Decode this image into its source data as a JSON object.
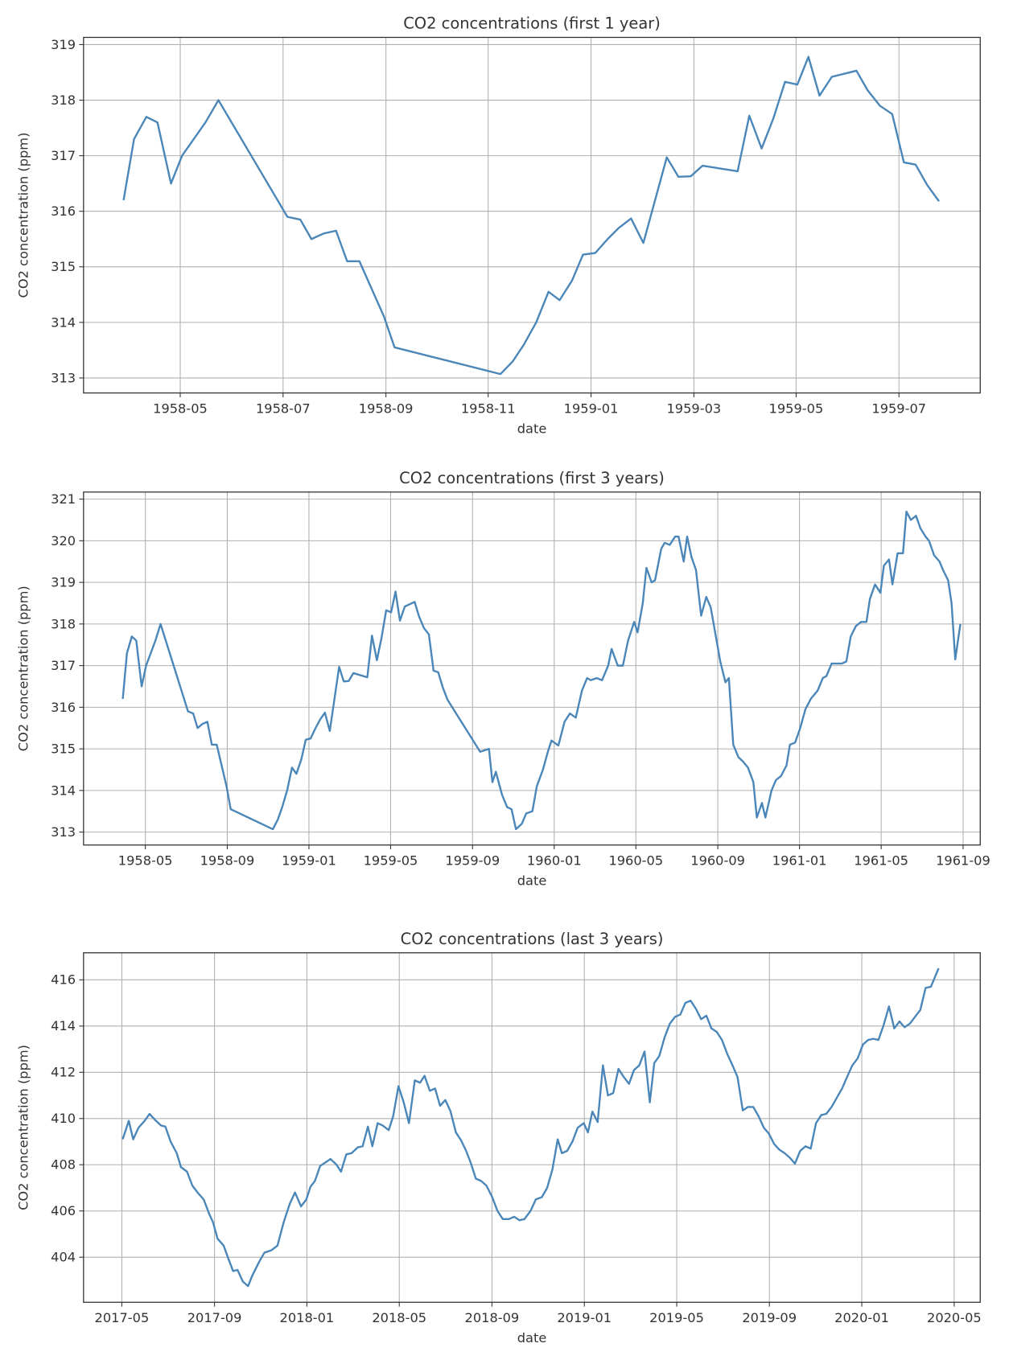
{
  "chart_data": [
    {
      "type": "line",
      "title": "CO2 concentrations (first 1 year)",
      "x_label": "date",
      "y_label": "CO2 concentration (ppm)",
      "color": "#4a86b8",
      "grid": true,
      "xlim": [
        1958.176,
        1959.632
      ],
      "ylim": [
        312.73,
        319.13
      ],
      "xticks": [
        {
          "value": 1958.333,
          "label": "1958-05"
        },
        {
          "value": 1958.5,
          "label": "1958-07"
        },
        {
          "value": 1958.667,
          "label": "1958-09"
        },
        {
          "value": 1958.833,
          "label": "1958-11"
        },
        {
          "value": 1959.0,
          "label": "1959-01"
        },
        {
          "value": 1959.167,
          "label": "1959-03"
        },
        {
          "value": 1959.333,
          "label": "1959-05"
        },
        {
          "value": 1959.5,
          "label": "1959-07"
        }
      ],
      "yticks": [
        313,
        314,
        315,
        316,
        317,
        318,
        319
      ],
      "x": [
        1958.241,
        1958.258,
        1958.278,
        1958.296,
        1958.318,
        1958.336,
        1958.374,
        1958.395,
        1958.507,
        1958.528,
        1958.546,
        1958.566,
        1958.586,
        1958.604,
        1958.624,
        1958.664,
        1958.681,
        1958.853,
        1958.873,
        1958.891,
        1958.911,
        1958.931,
        1958.949,
        1958.969,
        1958.987,
        1959.007,
        1959.027,
        1959.045,
        1959.065,
        1959.085,
        1959.123,
        1959.142,
        1959.162,
        1959.181,
        1959.238,
        1959.257,
        1959.277,
        1959.296,
        1959.315,
        1959.335,
        1959.353,
        1959.371,
        1959.391,
        1959.431,
        1959.449,
        1959.469,
        1959.489,
        1959.508,
        1959.527,
        1959.546,
        1959.565
      ],
      "values": [
        316.2,
        317.3,
        317.7,
        317.6,
        316.5,
        317.0,
        317.6,
        318.0,
        315.9,
        315.85,
        315.5,
        315.6,
        315.65,
        315.1,
        315.1,
        314.1,
        313.55,
        313.07,
        313.3,
        313.6,
        314.0,
        314.55,
        314.4,
        314.75,
        315.22,
        315.25,
        315.5,
        315.7,
        315.87,
        315.43,
        316.97,
        316.62,
        316.63,
        316.82,
        316.72,
        317.72,
        317.13,
        317.67,
        318.33,
        318.28,
        318.78,
        318.08,
        318.42,
        318.53,
        318.18,
        317.9,
        317.75,
        316.88,
        316.84,
        316.47,
        316.18
      ]
    },
    {
      "type": "line",
      "title": "CO2 concentrations (first 3 years)",
      "x_label": "date",
      "y_label": "CO2 concentration (ppm)",
      "color": "#4a86b8",
      "grid": true,
      "xlim": [
        1958.081,
        1961.737
      ],
      "ylim": [
        312.69,
        321.17
      ],
      "xticks": [
        {
          "value": 1958.333,
          "label": "1958-05"
        },
        {
          "value": 1958.667,
          "label": "1958-09"
        },
        {
          "value": 1959.0,
          "label": "1959-01"
        },
        {
          "value": 1959.333,
          "label": "1959-05"
        },
        {
          "value": 1959.667,
          "label": "1959-09"
        },
        {
          "value": 1960.0,
          "label": "1960-01"
        },
        {
          "value": 1960.333,
          "label": "1960-05"
        },
        {
          "value": 1960.667,
          "label": "1960-09"
        },
        {
          "value": 1961.0,
          "label": "1961-01"
        },
        {
          "value": 1961.333,
          "label": "1961-05"
        },
        {
          "value": 1961.667,
          "label": "1961-09"
        }
      ],
      "yticks": [
        313,
        314,
        315,
        316,
        317,
        318,
        319,
        320,
        321
      ],
      "x": [
        1958.241,
        1958.258,
        1958.278,
        1958.296,
        1958.318,
        1958.336,
        1958.374,
        1958.395,
        1958.507,
        1958.528,
        1958.546,
        1958.566,
        1958.586,
        1958.604,
        1958.624,
        1958.664,
        1958.681,
        1958.853,
        1958.873,
        1958.891,
        1958.911,
        1958.931,
        1958.949,
        1958.969,
        1958.987,
        1959.007,
        1959.027,
        1959.045,
        1959.065,
        1959.085,
        1959.123,
        1959.142,
        1959.162,
        1959.181,
        1959.238,
        1959.257,
        1959.277,
        1959.296,
        1959.315,
        1959.335,
        1959.353,
        1959.371,
        1959.391,
        1959.431,
        1959.449,
        1959.469,
        1959.489,
        1959.508,
        1959.527,
        1959.546,
        1959.565,
        1959.698,
        1959.734,
        1959.748,
        1959.762,
        1959.787,
        1959.808,
        1959.826,
        1959.844,
        1959.868,
        1959.886,
        1959.911,
        1959.929,
        1959.954,
        1959.975,
        1959.989,
        1960.017,
        1960.042,
        1960.064,
        1960.088,
        1960.113,
        1960.134,
        1960.149,
        1960.173,
        1960.195,
        1960.22,
        1960.234,
        1960.259,
        1960.28,
        1960.301,
        1960.326,
        1960.34,
        1960.361,
        1960.376,
        1960.397,
        1960.411,
        1960.436,
        1960.45,
        1960.471,
        1960.493,
        1960.507,
        1960.528,
        1960.542,
        1960.56,
        1960.578,
        1960.599,
        1960.62,
        1960.638,
        1960.656,
        1960.677,
        1960.698,
        1960.712,
        1960.73,
        1960.751,
        1960.769,
        1960.79,
        1960.812,
        1960.826,
        1960.847,
        1960.861,
        1960.886,
        1960.904,
        1960.925,
        1960.947,
        1960.961,
        1960.982,
        1961.003,
        1961.024,
        1961.046,
        1961.074,
        1961.095,
        1961.11,
        1961.131,
        1961.173,
        1961.191,
        1961.209,
        1961.23,
        1961.251,
        1961.273,
        1961.287,
        1961.308,
        1961.33,
        1961.344,
        1961.365,
        1961.379,
        1961.4,
        1961.422,
        1961.436,
        1961.454,
        1961.475,
        1961.493,
        1961.514,
        1961.528,
        1961.549,
        1961.571,
        1961.585,
        1961.606,
        1961.62,
        1961.635,
        1961.656
      ],
      "values": [
        316.2,
        317.3,
        317.7,
        317.6,
        316.5,
        317.0,
        317.6,
        318.0,
        315.9,
        315.85,
        315.5,
        315.6,
        315.65,
        315.1,
        315.1,
        314.1,
        313.55,
        313.07,
        313.3,
        313.6,
        314.0,
        314.55,
        314.4,
        314.75,
        315.22,
        315.25,
        315.5,
        315.7,
        315.87,
        315.43,
        316.97,
        316.62,
        316.63,
        316.82,
        316.72,
        317.72,
        317.13,
        317.67,
        318.33,
        318.28,
        318.78,
        318.08,
        318.42,
        318.53,
        318.18,
        317.9,
        317.75,
        316.88,
        316.84,
        316.47,
        316.18,
        314.93,
        315.0,
        314.2,
        314.45,
        313.9,
        313.6,
        313.55,
        313.07,
        313.2,
        313.45,
        313.5,
        314.1,
        314.5,
        314.95,
        315.2,
        315.08,
        315.65,
        315.85,
        315.75,
        316.4,
        316.7,
        316.65,
        316.7,
        316.65,
        317.0,
        317.4,
        317.0,
        317.0,
        317.6,
        318.05,
        317.8,
        318.5,
        319.35,
        319.0,
        319.05,
        319.8,
        319.95,
        319.9,
        320.1,
        320.1,
        319.5,
        320.1,
        319.6,
        319.3,
        318.2,
        318.65,
        318.4,
        317.8,
        317.1,
        316.6,
        316.7,
        315.1,
        314.8,
        314.7,
        314.55,
        314.2,
        313.35,
        313.7,
        313.35,
        314.0,
        314.25,
        314.35,
        314.6,
        315.1,
        315.15,
        315.5,
        315.95,
        316.2,
        316.4,
        316.7,
        316.75,
        317.05,
        317.05,
        317.1,
        317.7,
        317.95,
        318.05,
        318.05,
        318.6,
        318.95,
        318.75,
        319.4,
        319.55,
        318.95,
        319.7,
        319.7,
        320.7,
        320.5,
        320.6,
        320.3,
        320.1,
        320.0,
        319.65,
        319.5,
        319.3,
        319.05,
        318.5,
        317.15,
        318.0
      ]
    },
    {
      "type": "line",
      "title": "CO2 concentrations (last 3 years)",
      "x_label": "date",
      "y_label": "CO2 concentration (ppm)",
      "color": "#4a86b8",
      "grid": true,
      "xlim": [
        2017.195,
        2020.427
      ],
      "ylim": [
        402.05,
        417.17
      ],
      "xticks": [
        {
          "value": 2017.333,
          "label": "2017-05"
        },
        {
          "value": 2017.667,
          "label": "2017-09"
        },
        {
          "value": 2018.0,
          "label": "2018-01"
        },
        {
          "value": 2018.333,
          "label": "2018-05"
        },
        {
          "value": 2018.667,
          "label": "2018-09"
        },
        {
          "value": 2019.0,
          "label": "2019-01"
        },
        {
          "value": 2019.333,
          "label": "2019-05"
        },
        {
          "value": 2019.667,
          "label": "2019-09"
        },
        {
          "value": 2020.0,
          "label": "2020-01"
        },
        {
          "value": 2020.333,
          "label": "2020-05"
        }
      ],
      "yticks": [
        404,
        406,
        408,
        410,
        412,
        414,
        416
      ],
      "x": [
        2017.336,
        2017.358,
        2017.374,
        2017.393,
        2017.415,
        2017.433,
        2017.452,
        2017.474,
        2017.49,
        2017.509,
        2017.531,
        2017.546,
        2017.568,
        2017.587,
        2017.606,
        2017.628,
        2017.647,
        2017.662,
        2017.678,
        2017.7,
        2017.715,
        2017.734,
        2017.75,
        2017.769,
        2017.788,
        2017.803,
        2017.828,
        2017.847,
        2017.872,
        2017.894,
        2017.916,
        2017.938,
        2017.957,
        2017.979,
        2017.998,
        2018.013,
        2018.029,
        2018.048,
        2018.067,
        2018.085,
        2018.107,
        2018.123,
        2018.142,
        2018.161,
        2018.183,
        2018.201,
        2018.22,
        2018.236,
        2018.255,
        2018.273,
        2018.295,
        2018.311,
        2018.33,
        2018.349,
        2018.368,
        2018.389,
        2018.408,
        2018.424,
        2018.443,
        2018.462,
        2018.48,
        2018.499,
        2018.518,
        2018.537,
        2018.556,
        2018.574,
        2018.59,
        2018.609,
        2018.628,
        2018.647,
        2018.668,
        2018.687,
        2018.706,
        2018.728,
        2018.747,
        2018.766,
        2018.784,
        2018.806,
        2018.825,
        2018.847,
        2018.866,
        2018.885,
        2018.904,
        2018.919,
        2018.938,
        2018.957,
        2018.976,
        2018.998,
        2019.013,
        2019.029,
        2019.048,
        2019.067,
        2019.085,
        2019.104,
        2019.123,
        2019.142,
        2019.161,
        2019.179,
        2019.198,
        2019.217,
        2019.236,
        2019.252,
        2019.27,
        2019.289,
        2019.308,
        2019.327,
        2019.346,
        2019.364,
        2019.383,
        2019.402,
        2019.421,
        2019.44,
        2019.458,
        2019.477,
        2019.496,
        2019.515,
        2019.534,
        2019.552,
        2019.571,
        2019.59,
        2019.609,
        2019.628,
        2019.647,
        2019.665,
        2019.684,
        2019.703,
        2019.722,
        2019.741,
        2019.759,
        2019.778,
        2019.797,
        2019.816,
        2019.835,
        2019.854,
        2019.872,
        2019.891,
        2019.91,
        2019.929,
        2019.947,
        2019.966,
        2019.985,
        2020.004,
        2020.023,
        2020.042,
        2020.06,
        2020.079,
        2020.098,
        2020.117,
        2020.136,
        2020.154,
        2020.173,
        2020.192,
        2020.211,
        2020.23,
        2020.249,
        2020.277
      ],
      "values": [
        409.1,
        409.9,
        409.1,
        409.6,
        409.9,
        410.2,
        409.95,
        409.7,
        409.65,
        409.0,
        408.5,
        407.9,
        407.7,
        407.1,
        406.8,
        406.5,
        405.9,
        405.5,
        404.8,
        404.5,
        404.0,
        403.4,
        403.45,
        402.95,
        402.75,
        403.2,
        403.8,
        404.2,
        404.3,
        404.5,
        405.5,
        406.3,
        406.8,
        406.2,
        406.5,
        407.05,
        407.3,
        407.95,
        408.1,
        408.25,
        408.0,
        407.7,
        408.45,
        408.5,
        408.75,
        408.8,
        409.65,
        408.8,
        409.8,
        409.7,
        409.5,
        410.1,
        411.4,
        410.7,
        409.8,
        411.65,
        411.55,
        411.85,
        411.2,
        411.3,
        410.55,
        410.8,
        410.3,
        409.4,
        409.05,
        408.6,
        408.1,
        407.4,
        407.3,
        407.1,
        406.6,
        406.0,
        405.65,
        405.65,
        405.75,
        405.6,
        405.65,
        406.0,
        406.5,
        406.6,
        407.0,
        407.8,
        409.1,
        408.5,
        408.6,
        409.0,
        409.6,
        409.8,
        409.4,
        410.3,
        409.85,
        412.3,
        411.0,
        411.1,
        412.15,
        411.8,
        411.5,
        412.1,
        412.3,
        412.9,
        410.7,
        412.4,
        412.7,
        413.5,
        414.1,
        414.4,
        414.5,
        415.0,
        415.1,
        414.75,
        414.3,
        414.45,
        413.9,
        413.75,
        413.4,
        412.8,
        412.3,
        411.8,
        410.35,
        410.5,
        410.5,
        410.1,
        409.6,
        409.35,
        408.9,
        408.65,
        408.5,
        408.3,
        408.05,
        408.6,
        408.8,
        408.7,
        409.8,
        410.15,
        410.2,
        410.5,
        410.9,
        411.3,
        411.8,
        412.3,
        412.6,
        413.2,
        413.4,
        413.45,
        413.4,
        414.05,
        414.85,
        413.9,
        414.2,
        413.95,
        414.1,
        414.4,
        414.7,
        415.65,
        415.7,
        416.5
      ]
    }
  ]
}
